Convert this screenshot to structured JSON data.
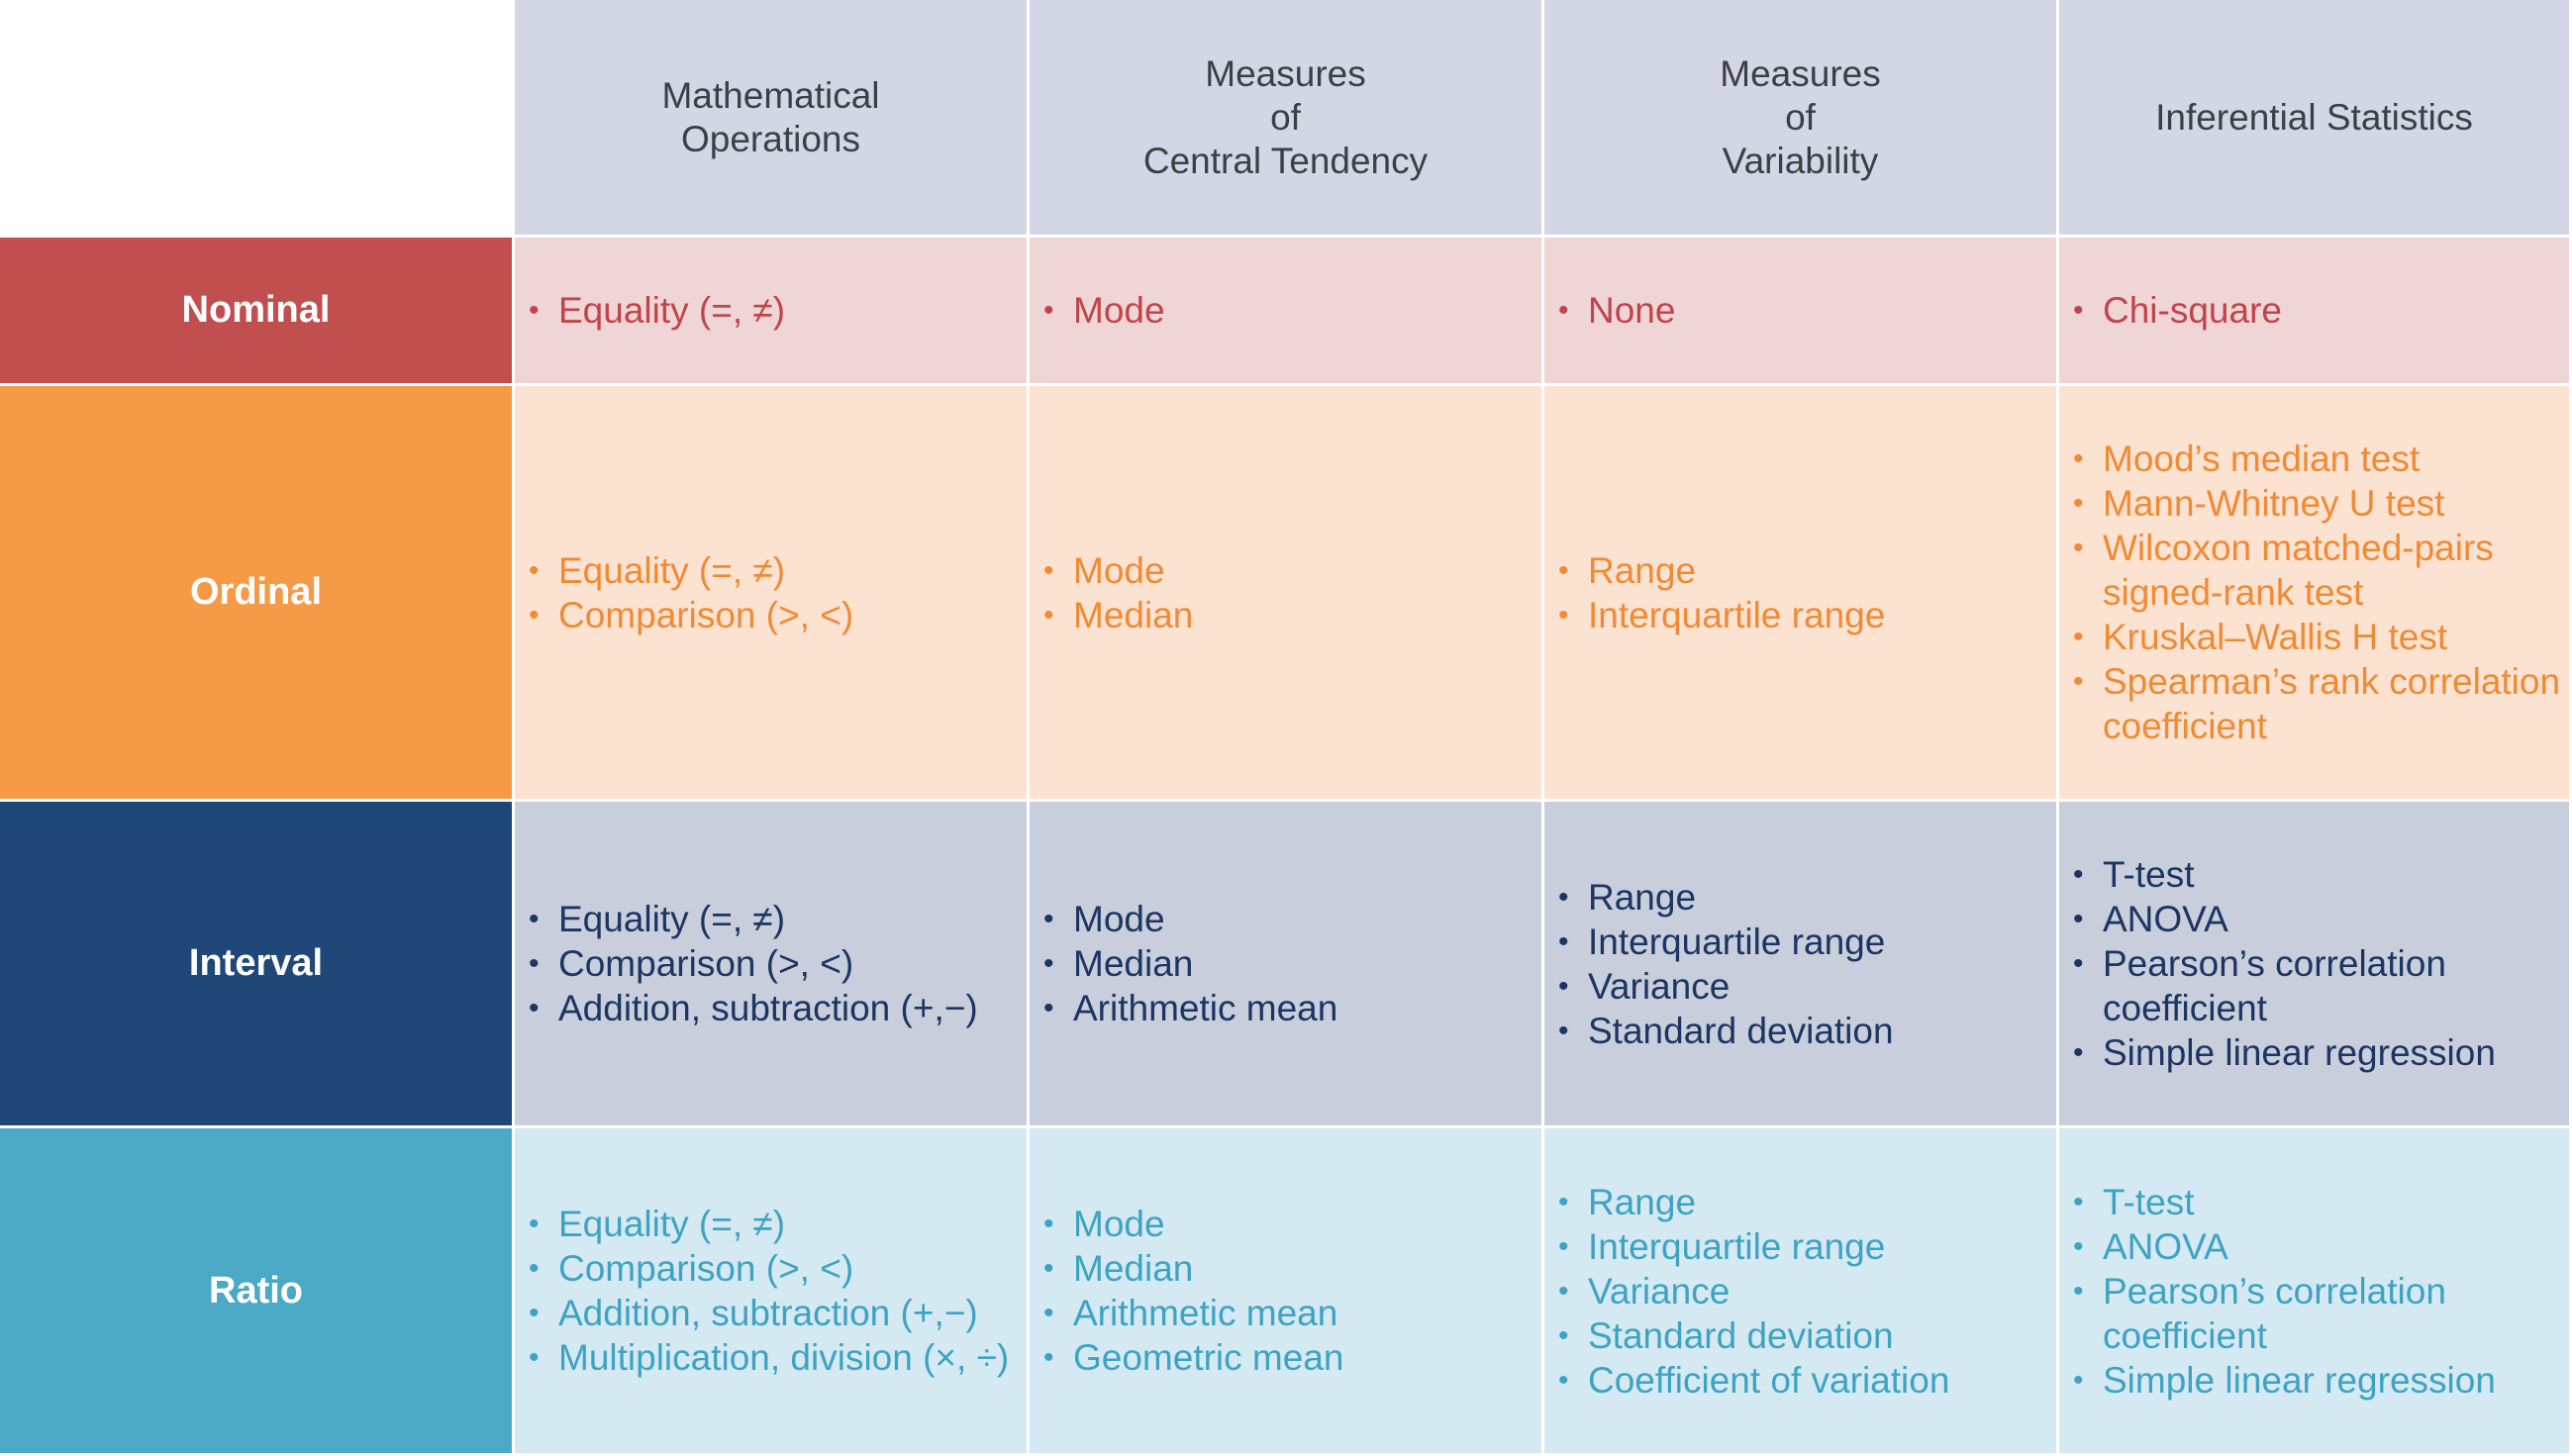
{
  "columns": [
    "Mathematical\nOperations",
    "Measures\nof\nCentral Tendency",
    "Measures\nof\nVariability",
    "Inferential Statistics"
  ],
  "rows": [
    {
      "label": "Nominal",
      "color": "#c24f4f",
      "cells": [
        [
          "Equality (=, ≠)"
        ],
        [
          "Mode"
        ],
        [
          "None"
        ],
        [
          "Chi-square"
        ]
      ]
    },
    {
      "label": "Ordinal",
      "color": "#f59a47",
      "cells": [
        [
          "Equality (=, ≠)",
          "Comparison (>, <)"
        ],
        [
          "Mode",
          "Median"
        ],
        [
          "Range",
          "Interquartile range"
        ],
        [
          "Mood’s median test",
          "Mann-Whitney U test",
          "Wilcoxon matched-pairs signed-rank test",
          "Kruskal–Wallis H test",
          "Spearman’s rank correlation coefficient"
        ]
      ]
    },
    {
      "label": "Interval",
      "color": "#1f4777",
      "cells": [
        [
          "Equality (=, ≠)",
          "Comparison (>, <)",
          "Addition, subtraction (+,−)"
        ],
        [
          "Mode",
          "Median",
          "Arithmetic mean"
        ],
        [
          "Range",
          "Interquartile range",
          "Variance",
          "Standard deviation"
        ],
        [
          "T-test",
          "ANOVA",
          "Pearson’s correlation coefficient",
          "Simple linear regression"
        ]
      ]
    },
    {
      "label": "Ratio",
      "color": "#4aaac5",
      "cells": [
        [
          "Equality (=, ≠)",
          "Comparison (>, <)",
          "Addition, subtraction (+,−)",
          "Multiplication, division (×, ÷)"
        ],
        [
          "Mode",
          "Median",
          "Arithmetic mean",
          "Geometric mean"
        ],
        [
          "Range",
          "Interquartile range",
          "Variance",
          "Standard deviation",
          "Coefficient of variation"
        ],
        [
          "T-test",
          "ANOVA",
          "Pearson’s correlation coefficient",
          "Simple linear regression"
        ]
      ]
    }
  ]
}
